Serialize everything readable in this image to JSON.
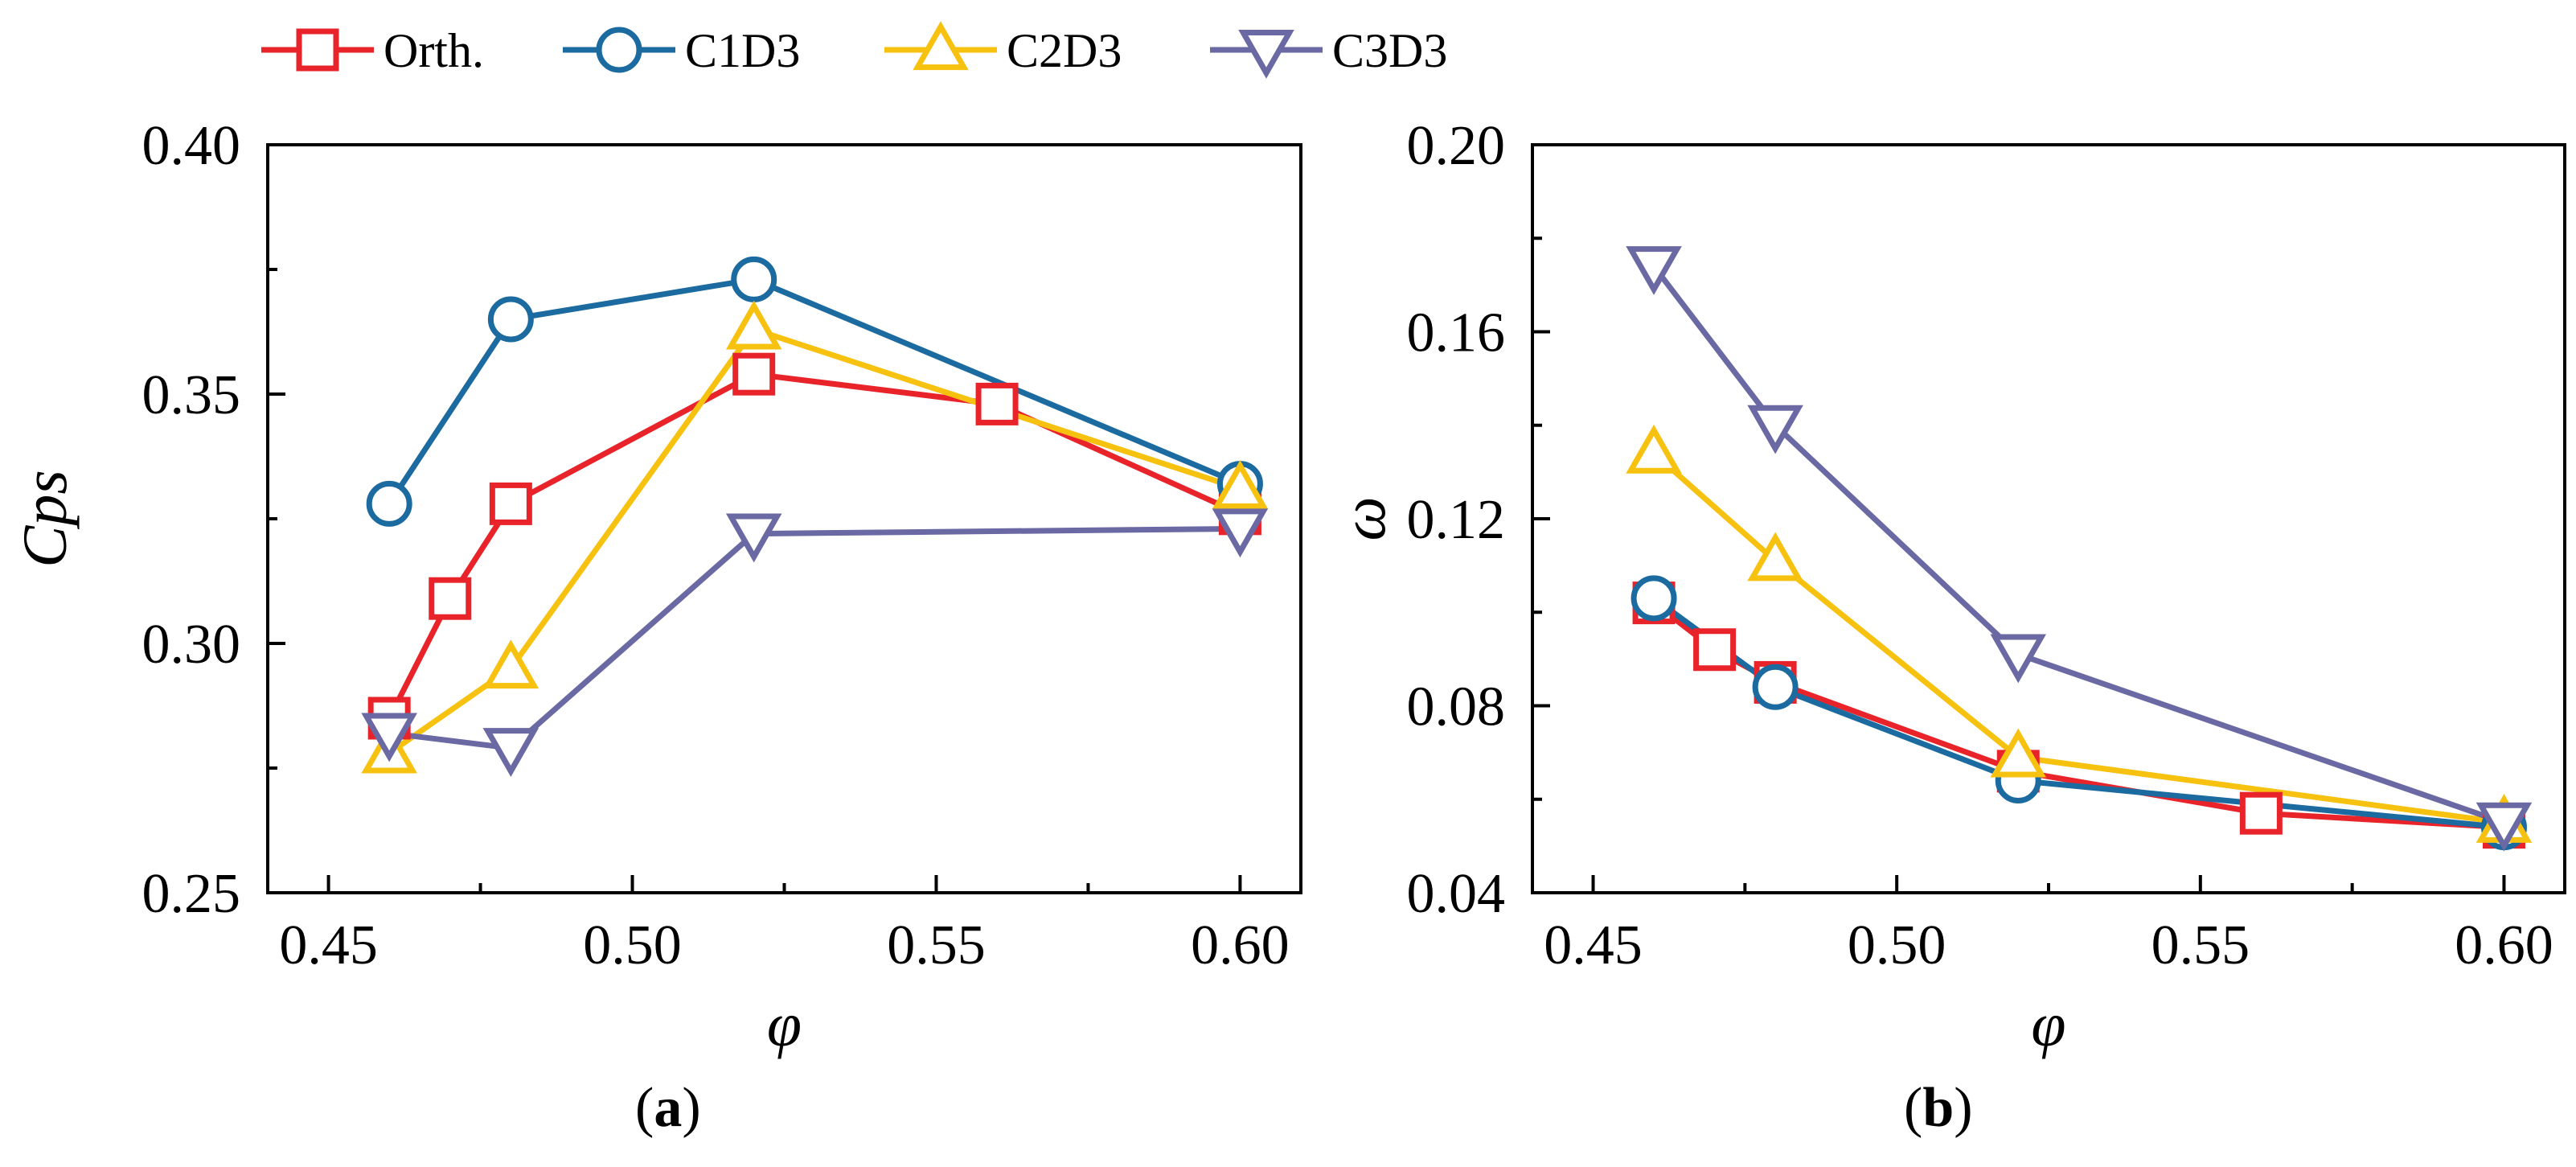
{
  "legend": [
    {
      "name": "Orth.",
      "color": "#e8232a",
      "marker": "square-icon"
    },
    {
      "name": "C1D3",
      "color": "#1b6aa0",
      "marker": "circle-icon"
    },
    {
      "name": "C2D3",
      "color": "#f7c20f",
      "marker": "triangle-up-icon"
    },
    {
      "name": "C3D3",
      "color": "#6a69a3",
      "marker": "triangle-down-icon"
    }
  ],
  "chart_data": [
    {
      "type": "line",
      "title": "",
      "caption_prefix": "(",
      "caption_letter": "a",
      "caption_suffix": ")",
      "xlabel": "φ",
      "ylabel": "Cps",
      "xlim": [
        0.44,
        0.61
      ],
      "ylim": [
        0.25,
        0.4
      ],
      "xticks": [
        0.45,
        0.5,
        0.55,
        0.6
      ],
      "xtick_labels": [
        "0.45",
        "0.50",
        "0.55",
        "0.60"
      ],
      "yticks": [
        0.25,
        0.3,
        0.35,
        0.4
      ],
      "ytick_labels": [
        "0.25",
        "0.30",
        "0.35",
        "0.40"
      ],
      "yminor": [
        0.275,
        0.325,
        0.375
      ],
      "series": [
        {
          "name": "Orth.",
          "x": [
            0.46,
            0.47,
            0.48,
            0.52,
            0.56,
            0.6
          ],
          "y": [
            0.285,
            0.309,
            0.328,
            0.354,
            0.348,
            0.326
          ]
        },
        {
          "name": "C1D3",
          "x": [
            0.46,
            0.48,
            0.52,
            0.6
          ],
          "y": [
            0.328,
            0.365,
            0.373,
            0.332
          ]
        },
        {
          "name": "C2D3",
          "x": [
            0.46,
            0.48,
            0.52,
            0.6
          ],
          "y": [
            0.278,
            0.295,
            0.363,
            0.331
          ]
        },
        {
          "name": "C3D3",
          "x": [
            0.46,
            0.48,
            0.52,
            0.6
          ],
          "y": [
            0.282,
            0.279,
            0.322,
            0.323
          ]
        }
      ]
    },
    {
      "type": "line",
      "title": "",
      "caption_prefix": "(",
      "caption_letter": "b",
      "caption_suffix": ")",
      "xlabel": "φ",
      "ylabel": "ω",
      "xlim": [
        0.44,
        0.61
      ],
      "ylim": [
        0.04,
        0.2
      ],
      "xticks": [
        0.45,
        0.5,
        0.55,
        0.6
      ],
      "xtick_labels": [
        "0.45",
        "0.50",
        "0.55",
        "0.60"
      ],
      "yticks": [
        0.04,
        0.08,
        0.12,
        0.16,
        0.2
      ],
      "ytick_labels": [
        "0.04",
        "0.08",
        "0.12",
        "0.16",
        "0.20"
      ],
      "yminor": [
        0.06,
        0.1,
        0.14,
        0.18
      ],
      "series": [
        {
          "name": "Orth.",
          "x": [
            0.46,
            0.47,
            0.48,
            0.52,
            0.56,
            0.6
          ],
          "y": [
            0.102,
            0.092,
            0.085,
            0.066,
            0.057,
            0.054
          ]
        },
        {
          "name": "C1D3",
          "x": [
            0.46,
            0.48,
            0.52,
            0.6
          ],
          "y": [
            0.103,
            0.084,
            0.064,
            0.054
          ]
        },
        {
          "name": "C2D3",
          "x": [
            0.46,
            0.48,
            0.52,
            0.6
          ],
          "y": [
            0.134,
            0.111,
            0.069,
            0.055
          ]
        },
        {
          "name": "C3D3",
          "x": [
            0.46,
            0.48,
            0.52,
            0.6
          ],
          "y": [
            0.174,
            0.14,
            0.091,
            0.055
          ]
        }
      ]
    }
  ]
}
